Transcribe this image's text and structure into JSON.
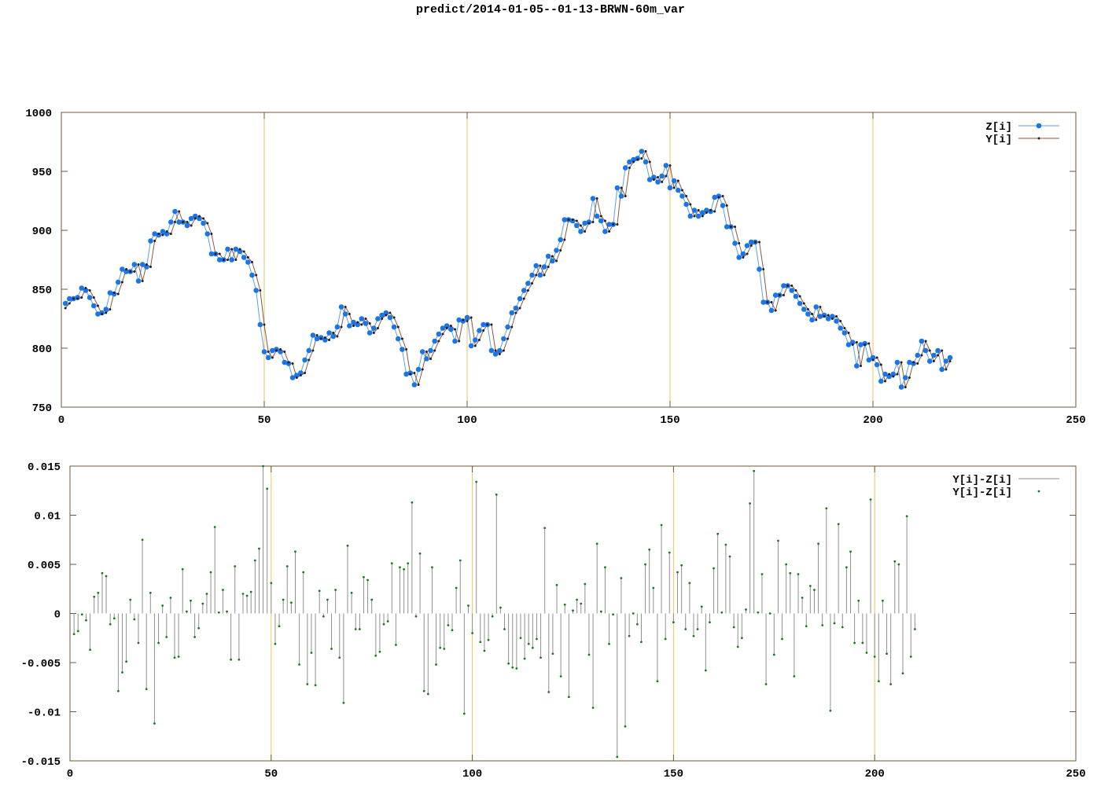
{
  "title": "predict/2014-01-05--01-13-BRWN-60m_var",
  "colors": {
    "z": "#1a75e8",
    "z_line": "#5aa0e8",
    "y": "#2b1a1a",
    "y_line": "#8b5a3c",
    "resid_line": "#909090",
    "resid_point": "#1a7a1a",
    "vline": "#f5c060",
    "frame": "#6b5a3a"
  },
  "chart_data": [
    {
      "type": "line",
      "xlim": [
        0,
        250
      ],
      "ylim": [
        750,
        1000
      ],
      "xticks": [
        0,
        50,
        100,
        150,
        200,
        250
      ],
      "yticks": [
        750,
        800,
        850,
        900,
        950,
        1000
      ],
      "vlines": [
        50,
        100,
        150,
        200
      ],
      "legend_position": "top-right",
      "series": [
        {
          "name": "Z[i]",
          "x_start": 1,
          "values": [
            838,
            842,
            842,
            843,
            851,
            849,
            843,
            836,
            829,
            830,
            833,
            847,
            846,
            856,
            867,
            865,
            865,
            871,
            857,
            871,
            869,
            891,
            897,
            896,
            899,
            897,
            907,
            916,
            907,
            907,
            904,
            910,
            912,
            910,
            906,
            897,
            880,
            880,
            875,
            875,
            884,
            875,
            884,
            882,
            877,
            873,
            862,
            849,
            820,
            797,
            792,
            798,
            799,
            797,
            788,
            787,
            775,
            777,
            779,
            790,
            798,
            811,
            808,
            809,
            807,
            813,
            810,
            818,
            835,
            829,
            819,
            822,
            820,
            825,
            821,
            813,
            817,
            825,
            828,
            830,
            826,
            818,
            808,
            799,
            778,
            779,
            769,
            782,
            797,
            791,
            798,
            806,
            812,
            817,
            819,
            816,
            806,
            824,
            823,
            826,
            802,
            807,
            815,
            820,
            820,
            798,
            795,
            798,
            808,
            818,
            830,
            834,
            842,
            849,
            855,
            862,
            870,
            862,
            869,
            878,
            874,
            883,
            892,
            909,
            909,
            908,
            904,
            899,
            906,
            907,
            927,
            912,
            908,
            899,
            905,
            905,
            936,
            929,
            953,
            958,
            960,
            961,
            967,
            958,
            943,
            945,
            941,
            946,
            955,
            936,
            942,
            934,
            929,
            922,
            912,
            917,
            912,
            915,
            917,
            916,
            928,
            929,
            921,
            903,
            903,
            889,
            877,
            880,
            887,
            890,
            890,
            867,
            839,
            839,
            832,
            845,
            845,
            853,
            853,
            849,
            844,
            838,
            833,
            829,
            824,
            835,
            827,
            828,
            825,
            827,
            823,
            817,
            813,
            803,
            805,
            785,
            803,
            804,
            790,
            792,
            786,
            772,
            778,
            776,
            778,
            788,
            767,
            775,
            788,
            787,
            794,
            806,
            798,
            789,
            794,
            798,
            782,
            789,
            792
          ]
        },
        {
          "name": "Y[i]",
          "x_start": 1,
          "values": [
            834,
            838,
            842,
            842,
            843,
            851,
            849,
            843,
            836,
            829,
            830,
            833,
            847,
            846,
            856,
            867,
            865,
            865,
            871,
            857,
            871,
            869,
            891,
            897,
            896,
            899,
            897,
            907,
            916,
            907,
            907,
            904,
            910,
            912,
            910,
            906,
            897,
            880,
            880,
            875,
            875,
            884,
            875,
            884,
            882,
            877,
            873,
            862,
            849,
            820,
            797,
            792,
            798,
            799,
            797,
            788,
            787,
            775,
            777,
            779,
            790,
            798,
            811,
            808,
            809,
            807,
            813,
            810,
            818,
            835,
            829,
            819,
            822,
            820,
            825,
            821,
            813,
            817,
            825,
            828,
            830,
            826,
            818,
            808,
            799,
            778,
            779,
            769,
            782,
            797,
            791,
            798,
            806,
            812,
            817,
            819,
            816,
            806,
            824,
            823,
            826,
            802,
            807,
            815,
            820,
            820,
            798,
            795,
            798,
            808,
            818,
            830,
            834,
            842,
            849,
            855,
            862,
            870,
            862,
            869,
            878,
            874,
            883,
            892,
            909,
            909,
            908,
            904,
            899,
            906,
            907,
            927,
            912,
            908,
            899,
            905,
            905,
            936,
            929,
            953,
            958,
            960,
            961,
            967,
            958,
            943,
            945,
            941,
            946,
            955,
            936,
            942,
            934,
            929,
            922,
            912,
            917,
            912,
            915,
            917,
            916,
            928,
            929,
            921,
            903,
            903,
            889,
            877,
            880,
            887,
            890,
            890,
            867,
            839,
            839,
            832,
            845,
            845,
            853,
            853,
            849,
            844,
            838,
            833,
            829,
            824,
            835,
            827,
            828,
            825,
            827,
            823,
            817,
            813,
            803,
            805,
            785,
            803,
            804,
            790,
            792,
            786,
            772,
            778,
            776,
            778,
            788,
            767,
            775,
            788,
            787,
            794,
            806,
            798,
            789,
            794,
            798,
            782,
            789
          ]
        }
      ]
    },
    {
      "type": "bar",
      "xlim": [
        0,
        250
      ],
      "ylim": [
        -0.015,
        0.015
      ],
      "xticks": [
        0,
        50,
        100,
        150,
        200,
        250
      ],
      "yticks": [
        -0.015,
        -0.01,
        -0.005,
        0,
        0.005,
        0.01,
        0.015
      ],
      "vlines": [
        50,
        100,
        150,
        200
      ],
      "legend_position": "top-right",
      "series": [
        {
          "name": "Y[i]-Z[i]",
          "x_start": 1,
          "values": [
            -0.0021,
            -0.0018,
            -0.0001,
            -0.0007,
            -0.0037,
            0.0017,
            0.0021,
            0.0041,
            0.0038,
            -0.0011,
            -0.0005,
            -0.0079,
            -0.006,
            -0.0049,
            0.0014,
            -0.0006,
            -0.003,
            0.0075,
            -0.0077,
            0.0021,
            -0.0112,
            -0.003,
            0.0008,
            -0.0024,
            0.0016,
            -0.0045,
            -0.0044,
            0.0045,
            0.0002,
            0.0013,
            -0.0024,
            -0.0015,
            0.001,
            0.002,
            0.0042,
            0.0088,
            0.0001,
            0.0024,
            0.0002,
            -0.0047,
            0.0048,
            -0.0047,
            0.002,
            0.0018,
            0.0022,
            0.0054,
            0.0066,
            0.015,
            0.0127,
            0.0031,
            -0.0031,
            -0.0013,
            0.0014,
            0.0048,
            0.0011,
            0.0063,
            -0.0052,
            0.0042,
            -0.0072,
            -0.004,
            -0.0073,
            0.0023,
            -0.0003,
            0.0014,
            -0.0036,
            0.0024,
            -0.0045,
            -0.0091,
            0.0069,
            0.0021,
            -0.0016,
            -0.0016,
            0.0037,
            0.0034,
            0.0014,
            -0.0043,
            -0.0039,
            -0.0011,
            -0.0008,
            0.0051,
            -0.0032,
            0.0047,
            0.0045,
            0.0051,
            0.0113,
            -0.0003,
            0.0061,
            -0.0079,
            -0.0082,
            0.0047,
            -0.0052,
            -0.0035,
            -0.0036,
            -0.0012,
            -0.0017,
            0.0026,
            0.0054,
            -0.0102,
            0.0008,
            -0.002,
            0.0134,
            -0.0029,
            -0.0038,
            -0.0027,
            -0.0003,
            0.0121,
            0.0006,
            -0.0016,
            -0.0051,
            -0.0055,
            -0.0056,
            -0.0025,
            -0.0046,
            -0.0031,
            -0.0035,
            -0.0026,
            -0.0045,
            0.0087,
            -0.008,
            -0.0041,
            0.0029,
            -0.0064,
            0.0009,
            -0.0085,
            0.0003,
            0.0014,
            0.001,
            0.003,
            -0.0042,
            -0.0096,
            0.0071,
            0.0002,
            0.0047,
            -0.0031,
            -0.0001,
            -0.0146,
            0.0036,
            -0.0115,
            -0.0023,
            0.0,
            -0.0011,
            -0.0029,
            0.005,
            0.0065,
            0.0026,
            -0.0069,
            0.009,
            -0.0026,
            0.0062,
            -0.0009,
            0.0042,
            0.0049,
            -0.0016,
            0.0031,
            -0.0023,
            -0.0016,
            0.0007,
            -0.0058,
            -0.0009,
            0.0046,
            0.0081,
            0.0001,
            0.007,
            0.0058,
            -0.0014,
            -0.0034,
            -0.0025,
            0.0004,
            0.0112,
            0.0145,
            0.0001,
            0.004,
            -0.0072,
            0.0,
            -0.0042,
            0.0074,
            -0.0026,
            0.005,
            0.0041,
            -0.0064,
            0.004,
            0.0016,
            -0.0013,
            0.0028,
            0.0024,
            0.0071,
            -0.0012,
            0.0107,
            -0.0099,
            -0.001,
            0.0091,
            -0.0014,
            0.0047,
            0.0063,
            -0.003,
            0.0013,
            -0.003,
            -0.004,
            0.0116,
            -0.0044,
            -0.0069,
            0.0013,
            -0.0041,
            -0.0072,
            0.0053,
            0.005,
            -0.0061,
            0.0099,
            -0.0044,
            -0.0016
          ]
        }
      ]
    }
  ]
}
